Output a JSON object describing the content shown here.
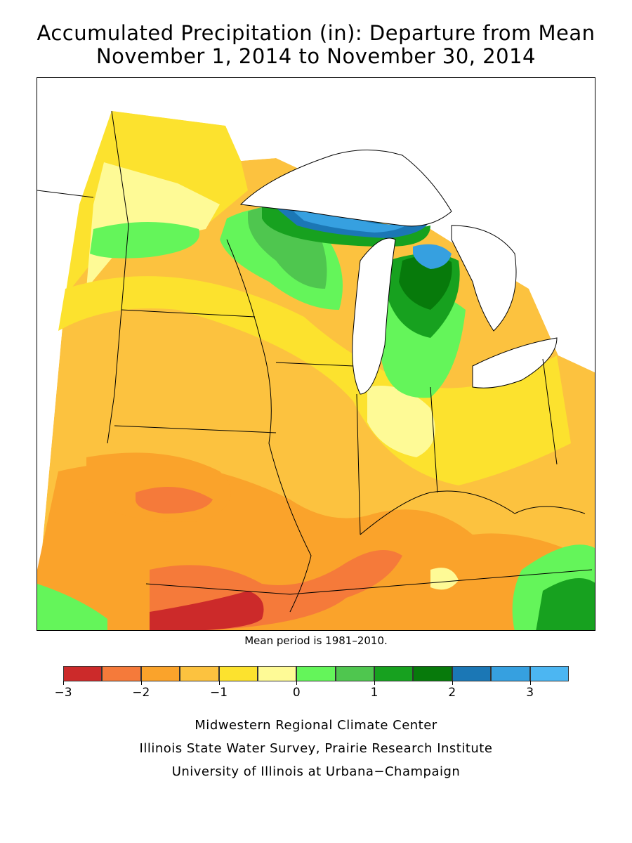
{
  "title": {
    "line1": "Accumulated Precipitation (in): Departure from Mean",
    "line2": "November 1, 2014 to November 30, 2014"
  },
  "map": {
    "region": "Midwest United States",
    "regions": {
      "dry_core": "below -2",
      "wet_lake_superior": "2 to 3",
      "wet_michigan": "1 to 2.5",
      "wet_southeast": "1 to 2"
    }
  },
  "note": "Mean period is 1981–2010.",
  "legend": {
    "bins": [
      {
        "from": -3.0,
        "to": -2.5,
        "color": "#cc2a2a"
      },
      {
        "from": -2.5,
        "to": -2.0,
        "color": "#f57a3a"
      },
      {
        "from": -2.0,
        "to": -1.5,
        "color": "#faa32b"
      },
      {
        "from": -1.5,
        "to": -1.0,
        "color": "#fcc23f"
      },
      {
        "from": -1.0,
        "to": -0.5,
        "color": "#fce22e"
      },
      {
        "from": -0.5,
        "to": 0.0,
        "color": "#fefa96"
      },
      {
        "from": 0.0,
        "to": 0.5,
        "color": "#64f55a"
      },
      {
        "from": 0.5,
        "to": 1.0,
        "color": "#4fc64f"
      },
      {
        "from": 1.0,
        "to": 1.5,
        "color": "#17a11f"
      },
      {
        "from": 1.5,
        "to": 2.0,
        "color": "#077a0b"
      },
      {
        "from": 2.0,
        "to": 2.5,
        "color": "#1b77b5"
      },
      {
        "from": 2.5,
        "to": 3.0,
        "color": "#36a0e0"
      },
      {
        "from": 3.0,
        "to": 3.5,
        "color": "#4cb6f2"
      }
    ],
    "ticks": [
      {
        "value": -3,
        "label": "−3"
      },
      {
        "value": -2,
        "label": "−2"
      },
      {
        "value": -1,
        "label": "−1"
      },
      {
        "value": 0,
        "label": "0"
      },
      {
        "value": 1,
        "label": "1"
      },
      {
        "value": 2,
        "label": "2"
      },
      {
        "value": 3,
        "label": "3"
      }
    ],
    "range": [
      -3.0,
      3.5
    ]
  },
  "credits": {
    "line1": "Midwestern Regional Climate Center",
    "line2": "Illinois State Water Survey, Prairie Research Institute",
    "line3": "University of Illinois at Urbana−Champaign"
  }
}
